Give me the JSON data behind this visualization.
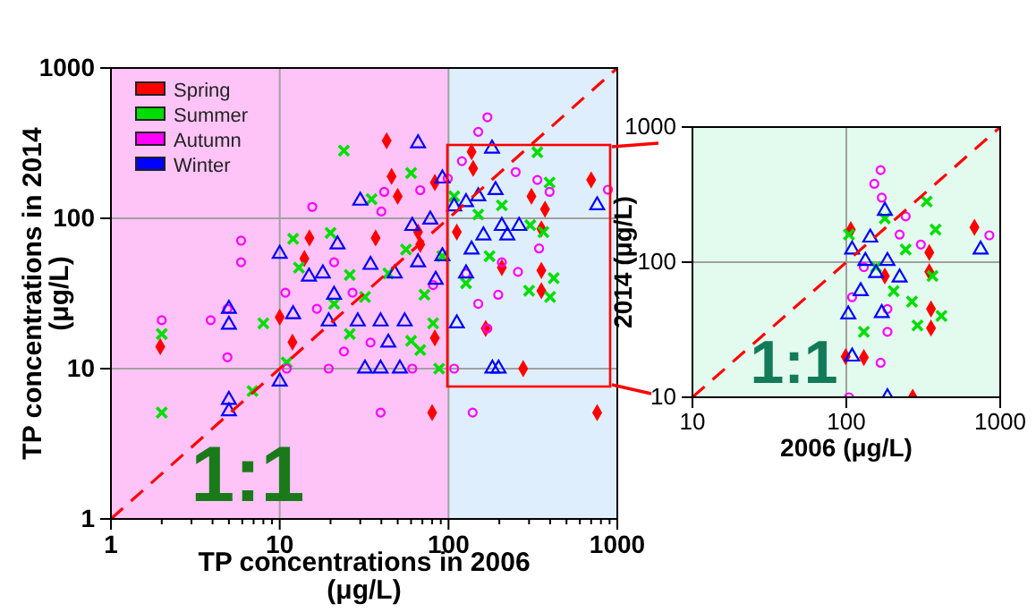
{
  "chart_data": [
    {
      "type": "scatter",
      "xlabel": "TP concentrations in 2006 (μg/L)",
      "ylabel": "TP concentrations in 2014 (μg/L)",
      "log": "xy",
      "xlim": [
        1,
        1000
      ],
      "ylim": [
        1,
        1000
      ],
      "xticks": [
        1,
        {
          "value": 2,
          "label": null
        },
        {
          "value": 3,
          "label": null
        },
        {
          "value": 4,
          "label": null
        },
        {
          "value": 5,
          "label": null
        },
        {
          "value": 6,
          "label": null
        },
        {
          "value": 7,
          "label": null
        },
        {
          "value": 8,
          "label": null
        },
        {
          "value": 9,
          "label": null
        },
        10,
        {
          "value": 20,
          "label": null
        },
        {
          "value": 30,
          "label": null
        },
        {
          "value": 40,
          "label": null
        },
        {
          "value": 50,
          "label": null
        },
        {
          "value": 60,
          "label": null
        },
        {
          "value": 70,
          "label": null
        },
        {
          "value": 80,
          "label": null
        },
        {
          "value": 90,
          "label": null
        },
        100,
        {
          "value": 200,
          "label": null
        },
        {
          "value": 300,
          "label": null
        },
        {
          "value": 400,
          "label": null
        },
        {
          "value": 500,
          "label": null
        },
        {
          "value": 600,
          "label": null
        },
        {
          "value": 700,
          "label": null
        },
        {
          "value": 800,
          "label": null
        },
        {
          "value": 900,
          "label": null
        },
        1000
      ],
      "yticks": [
        1,
        10,
        100,
        1000
      ],
      "grid": true,
      "legend": "top left",
      "annotations": [
        "1:1"
      ],
      "bands": [
        {
          "axis": "x",
          "from": 1,
          "to": 100,
          "color": "#ffc4f7"
        },
        {
          "axis": "x",
          "from": 100,
          "to": 1000,
          "color": "#deeefc"
        }
      ],
      "series": [
        {
          "name": "Spring",
          "color": "#ff0000",
          "marker": "diamond",
          "x": [
            43,
            46,
            700,
            373,
            355,
            355,
            355,
            277,
            760,
            80,
            83,
            166,
            10,
            11.9,
            14,
            1.96,
            15,
            37,
            66,
            83,
            140,
            310,
            137,
            50,
            68,
            112,
            207
          ],
          "values": [
            328,
            190,
            180,
            115,
            85,
            45,
            33,
            10,
            5.1,
            5.1,
            16,
            18.5,
            22,
            15,
            54,
            14,
            74,
            74,
            81,
            173,
            215,
            140,
            277,
            140,
            67,
            81,
            47
          ]
        },
        {
          "name": "Summer",
          "color": "#00dd00",
          "marker": "cross",
          "x": [
            24,
            336,
            60,
            35,
            12,
            20,
            13,
            26,
            8,
            2,
            2,
            6.9,
            11,
            21,
            26,
            60,
            68,
            88,
            81,
            397,
            420,
            400,
            300,
            305,
            365,
            127,
            175,
            108,
            44,
            92,
            72,
            150,
            207,
            56,
            32
          ],
          "values": [
            282,
            275,
            200,
            134,
            73,
            80,
            47,
            42,
            20,
            17,
            5.1,
            7.1,
            11,
            27,
            17,
            15.3,
            13.3,
            10,
            20,
            173,
            40,
            30,
            33,
            90,
            81,
            37,
            56,
            140,
            43,
            56,
            31,
            106,
            122,
            62,
            30
          ]
        },
        {
          "name": "Autumn",
          "color": "#ff00ff",
          "marker": "circle",
          "x": [
            170,
            150,
            120,
            15.6,
            5.9,
            5.9,
            10.8,
            3.9,
            2,
            11,
            19.5,
            39.6,
            139,
            170,
            16.6,
            24,
            34.5,
            61,
            108,
            150,
            197,
            258,
            344,
            336,
            880,
            397,
            250,
            41.6,
            40,
            21,
            27,
            81,
            68,
            4.9,
            4.9,
            127,
            207,
            99
          ],
          "values": [
            470,
            376,
            240,
            119,
            71,
            51,
            32,
            21,
            21,
            10,
            10,
            5.1,
            5.1,
            18.5,
            25,
            13,
            14.9,
            10,
            10,
            27,
            31,
            44,
            63,
            180,
            155,
            150,
            203,
            150,
            111,
            51,
            32,
            36,
            154,
            11.9,
            25,
            43,
            51,
            184
          ]
        },
        {
          "name": "Winter",
          "color": "#0000ff",
          "marker": "triangle",
          "x": [
            66,
            181,
            760,
            30,
            10,
            10,
            5,
            5,
            5,
            5,
            12,
            14.9,
            22,
            32,
            39.6,
            51.5,
            182,
            198,
            44,
            112,
            19.5,
            29,
            39.6,
            55,
            161,
            262,
            223,
            137,
            92,
            66,
            48,
            34.5,
            18,
            21,
            127,
            150,
            190,
            108,
            78,
            61,
            92,
            127,
            84,
            207
          ],
          "values": [
            316,
            291,
            122,
            131,
            58,
            8.2,
            5.2,
            6.2,
            25,
            19.6,
            23,
            41,
            67,
            10,
            10,
            10,
            10,
            10,
            14.9,
            20,
            20.6,
            20.6,
            20.6,
            20.6,
            77,
            89,
            77,
            62,
            56,
            51,
            43,
            49,
            43,
            31,
            128,
            140,
            154,
            120,
            98,
            89,
            184,
            43,
            39,
            89
          ]
        },
        {
          "type": "line",
          "color": "#ff0000",
          "line_style": "dashed",
          "marker": "none",
          "x": [
            1,
            1000
          ],
          "values": [
            1,
            1000
          ]
        }
      ]
    },
    {
      "type": "scatter",
      "xlabel": "2006 (μg/L)",
      "ylabel": "2014 (μg/L)",
      "log": "xy",
      "xlim": [
        10,
        1000
      ],
      "ylim": [
        10,
        1000
      ],
      "xticks": [
        10,
        100,
        1000
      ],
      "yticks": [
        10,
        100,
        1000
      ],
      "grid": true,
      "annotations": [
        "1:1"
      ],
      "series": [
        {
          "color": "#ff0000",
          "marker": "diamond",
          "x": [
            107,
            680,
            346,
            346,
            355,
            355,
            99,
            130,
            270,
            178
          ],
          "values": [
            174,
            181,
            118,
            85,
            45,
            32.5,
            20,
            19.7,
            10,
            79
          ]
        },
        {
          "color": "#00dd00",
          "marker": "cross",
          "x": [
            333,
            380,
            363,
            415,
            290,
            267,
            104,
            130,
            178,
            203,
            156,
            243
          ],
          "values": [
            281,
            174,
            79,
            40,
            34,
            51,
            160,
            30.5,
            211,
            61,
            92,
            124
          ]
        },
        {
          "color": "#ff00ff",
          "marker": "circle",
          "x": [
            167,
            152,
            170,
            850,
            305,
            167,
            185,
            104,
            130,
            222,
            109,
            185,
            243
          ],
          "values": [
            480,
            380,
            300,
            158,
            135,
            18,
            30.5,
            10,
            92,
            160,
            55,
            45,
            218
          ]
        },
        {
          "color": "#0000ff",
          "marker": "triangle",
          "x": [
            746,
            178,
            109,
            185,
            103,
            124,
            156,
            222,
            143,
            109,
            133,
            185,
            170
          ],
          "values": [
            124,
            240,
            20,
            10,
            41,
            61,
            83,
            77,
            152,
            124,
            102,
            102,
            42
          ]
        },
        {
          "type": "line",
          "color": "#ff0000",
          "line_style": "dashed",
          "marker": "none",
          "x": [
            10,
            1000
          ],
          "values": [
            10,
            1000
          ]
        }
      ]
    }
  ]
}
